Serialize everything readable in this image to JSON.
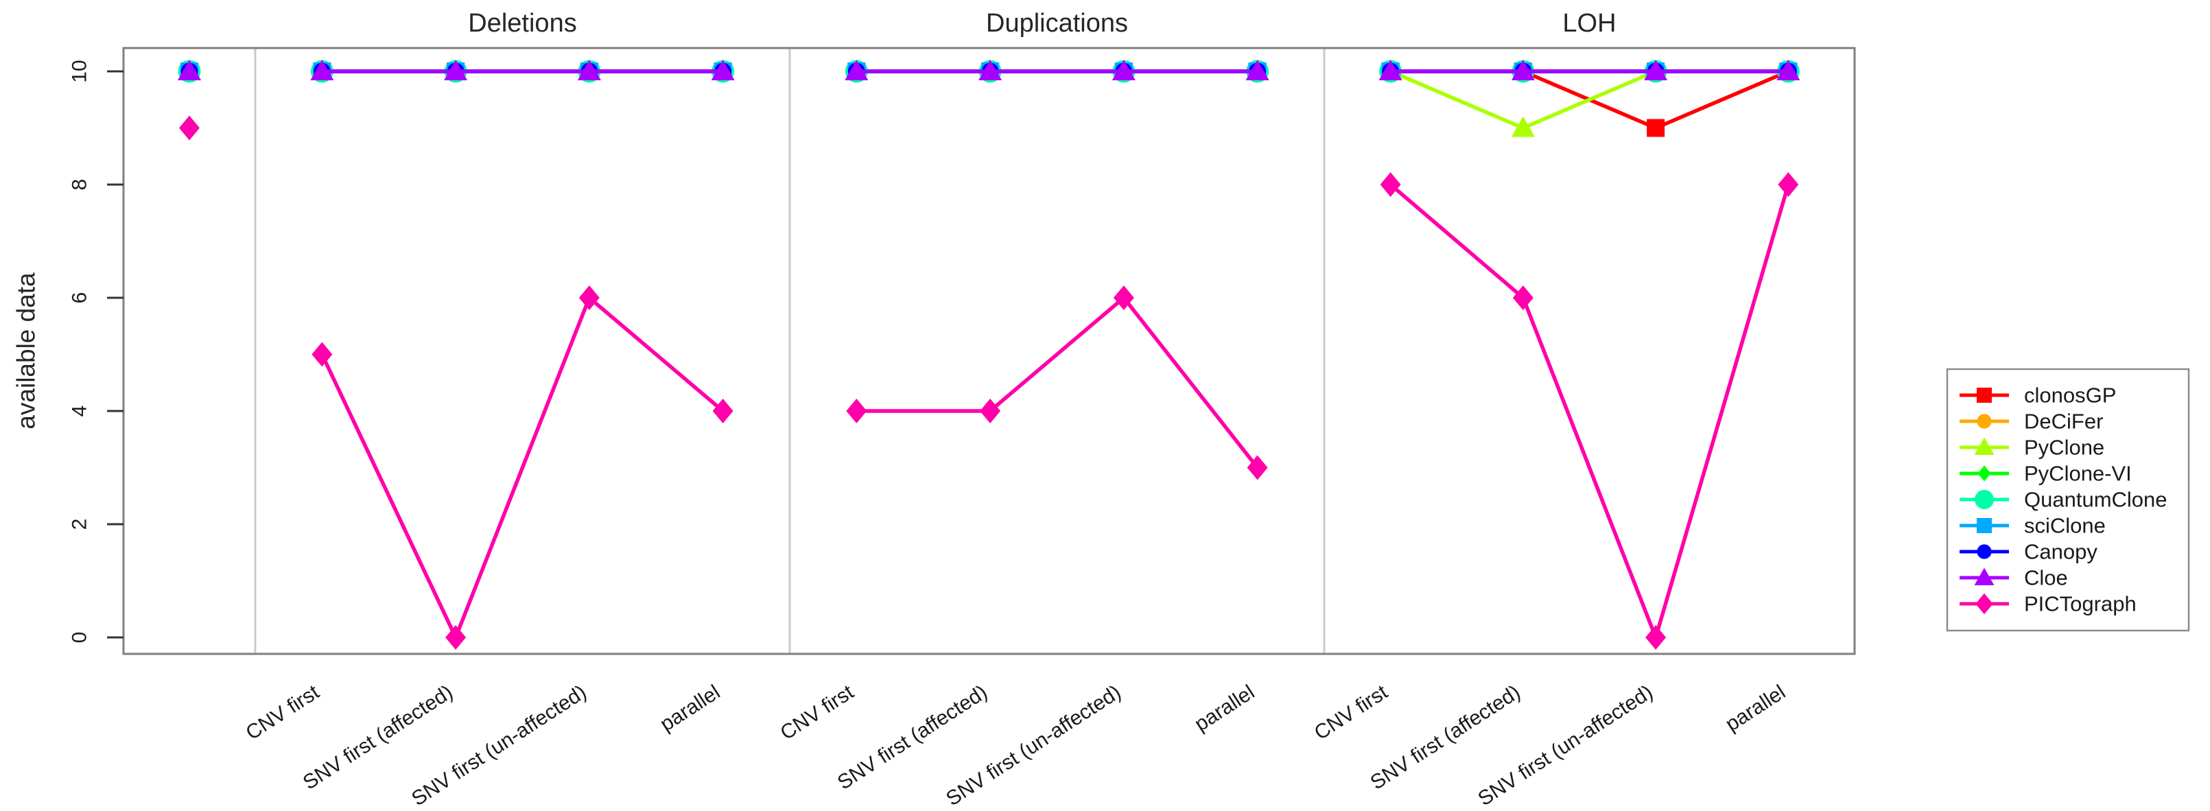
{
  "chart_data": {
    "type": "line",
    "title": "",
    "ylabel": "available data",
    "ylim": [
      0,
      10
    ],
    "yticks": [
      0,
      2,
      4,
      6,
      8,
      10
    ],
    "grid": false,
    "legend_position": "right-outside",
    "panels": [
      {
        "id": "baseline",
        "title": "",
        "categories": [
          ""
        ]
      },
      {
        "id": "deletions",
        "title": "Deletions",
        "categories": [
          "CNV first",
          "SNV first (affected)",
          "SNV first (un-affected)",
          "parallel"
        ]
      },
      {
        "id": "duplications",
        "title": "Duplications",
        "categories": [
          "CNV first",
          "SNV first (affected)",
          "SNV first (un-affected)",
          "parallel"
        ]
      },
      {
        "id": "loh",
        "title": "LOH",
        "categories": [
          "CNV first",
          "SNV first (affected)",
          "SNV first (un-affected)",
          "parallel"
        ]
      }
    ],
    "series": [
      {
        "name": "clonosGP",
        "color": "#FF0000",
        "marker": "square",
        "values": {
          "baseline": [
            10
          ],
          "deletions": [
            10,
            10,
            10,
            10
          ],
          "duplications": [
            10,
            10,
            10,
            10
          ],
          "loh": [
            10,
            10,
            9,
            10
          ]
        }
      },
      {
        "name": "DeCiFer",
        "color": "#FFAA00",
        "marker": "circle",
        "values": {
          "baseline": [
            10
          ],
          "deletions": [
            10,
            10,
            10,
            10
          ],
          "duplications": [
            10,
            10,
            10,
            10
          ],
          "loh": [
            10,
            10,
            10,
            10
          ]
        }
      },
      {
        "name": "PyClone",
        "color": "#AAFF00",
        "marker": "triangle",
        "values": {
          "baseline": [
            10
          ],
          "deletions": [
            10,
            10,
            10,
            10
          ],
          "duplications": [
            10,
            10,
            10,
            10
          ],
          "loh": [
            10,
            9,
            10,
            10
          ]
        }
      },
      {
        "name": "PyClone-VI",
        "color": "#00FF00",
        "marker": "diamond-small",
        "values": {
          "baseline": [
            10
          ],
          "deletions": [
            10,
            10,
            10,
            10
          ],
          "duplications": [
            10,
            10,
            10,
            10
          ],
          "loh": [
            10,
            10,
            10,
            10
          ]
        }
      },
      {
        "name": "QuantumClone",
        "color": "#00FFAA",
        "marker": "circle-large",
        "values": {
          "baseline": [
            10
          ],
          "deletions": [
            10,
            10,
            10,
            10
          ],
          "duplications": [
            10,
            10,
            10,
            10
          ],
          "loh": [
            10,
            10,
            10,
            10
          ]
        }
      },
      {
        "name": "sciClone",
        "color": "#00AAFF",
        "marker": "square",
        "values": {
          "baseline": [
            10
          ],
          "deletions": [
            10,
            10,
            10,
            10
          ],
          "duplications": [
            10,
            10,
            10,
            10
          ],
          "loh": [
            10,
            10,
            10,
            10
          ]
        }
      },
      {
        "name": "Canopy",
        "color": "#0000FF",
        "marker": "circle",
        "values": {
          "baseline": [
            10
          ],
          "deletions": [
            10,
            10,
            10,
            10
          ],
          "duplications": [
            10,
            10,
            10,
            10
          ],
          "loh": [
            10,
            10,
            10,
            10
          ]
        }
      },
      {
        "name": "Cloe",
        "color": "#AA00FF",
        "marker": "triangle",
        "values": {
          "baseline": [
            10
          ],
          "deletions": [
            10,
            10,
            10,
            10
          ],
          "duplications": [
            10,
            10,
            10,
            10
          ],
          "loh": [
            10,
            10,
            10,
            10
          ]
        }
      },
      {
        "name": "PICTograph",
        "color": "#FF00AA",
        "marker": "diamond",
        "values": {
          "baseline": [
            9
          ],
          "deletions": [
            5,
            0,
            6,
            4
          ],
          "duplications": [
            4,
            4,
            6,
            3
          ],
          "loh": [
            8,
            6,
            0,
            8
          ]
        }
      }
    ],
    "legend": {
      "entries": [
        "clonosGP",
        "DeCiFer",
        "PyClone",
        "PyClone-VI",
        "QuantumClone",
        "sciClone",
        "Canopy",
        "Cloe",
        "PICTograph"
      ]
    },
    "colors": {
      "axis_box": "#7f7f7f",
      "panel_divider": "#c9c9c9",
      "tick": "#333333",
      "text": "#1a1a1a",
      "title_text": "#262626",
      "legend_border": "#8c8c8c",
      "background": "#ffffff"
    }
  }
}
